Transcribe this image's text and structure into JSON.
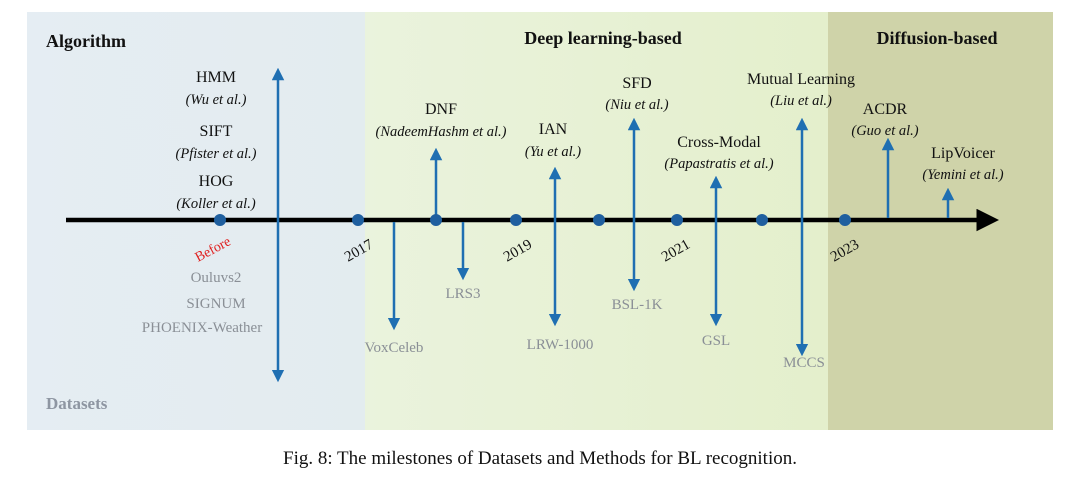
{
  "headers": {
    "algorithm": "Algorithm",
    "datasets": "Datasets",
    "deep_learning": "Deep learning-based",
    "diffusion": "Diffusion-based"
  },
  "timeline": {
    "years": [
      "2017",
      "2019",
      "2021",
      "2023"
    ],
    "before_label": "Before"
  },
  "methods": [
    {
      "name": "HMM",
      "cite": "(Wu et al.)"
    },
    {
      "name": "SIFT",
      "cite": "(Pfister et al.)"
    },
    {
      "name": "HOG",
      "cite": "(Koller et al.)"
    },
    {
      "name": "DNF",
      "cite": "(NadeemHashm et al.)"
    },
    {
      "name": "IAN",
      "cite": "(Yu et al.)"
    },
    {
      "name": "SFD",
      "cite": "(Niu et al.)"
    },
    {
      "name": "Cross-Modal",
      "cite": "(Papastratis et al.)"
    },
    {
      "name": "Mutual Learning",
      "cite": "(Liu et al.)"
    },
    {
      "name": "ACDR",
      "cite": "(Guo et al.)"
    },
    {
      "name": "LipVoicer",
      "cite": "(Yemini et al.)"
    }
  ],
  "datasets": [
    "Ouluvs2",
    "SIGNUM",
    "PHOENIX-Weather",
    "VoxCeleb",
    "LRS3",
    "LRW-1000",
    "BSL-1K",
    "GSL",
    "MCCS"
  ],
  "colors": {
    "algorithm_region": "#e6eef3",
    "deep_learning_region": "#e9f2d6",
    "diffusion_region": "#cfd2a8",
    "arrow": "#1f6fb2",
    "dot": "#1f5f9f",
    "axis": "#000000"
  },
  "caption": "Fig. 8: The milestones of Datasets and Methods for BL recognition."
}
